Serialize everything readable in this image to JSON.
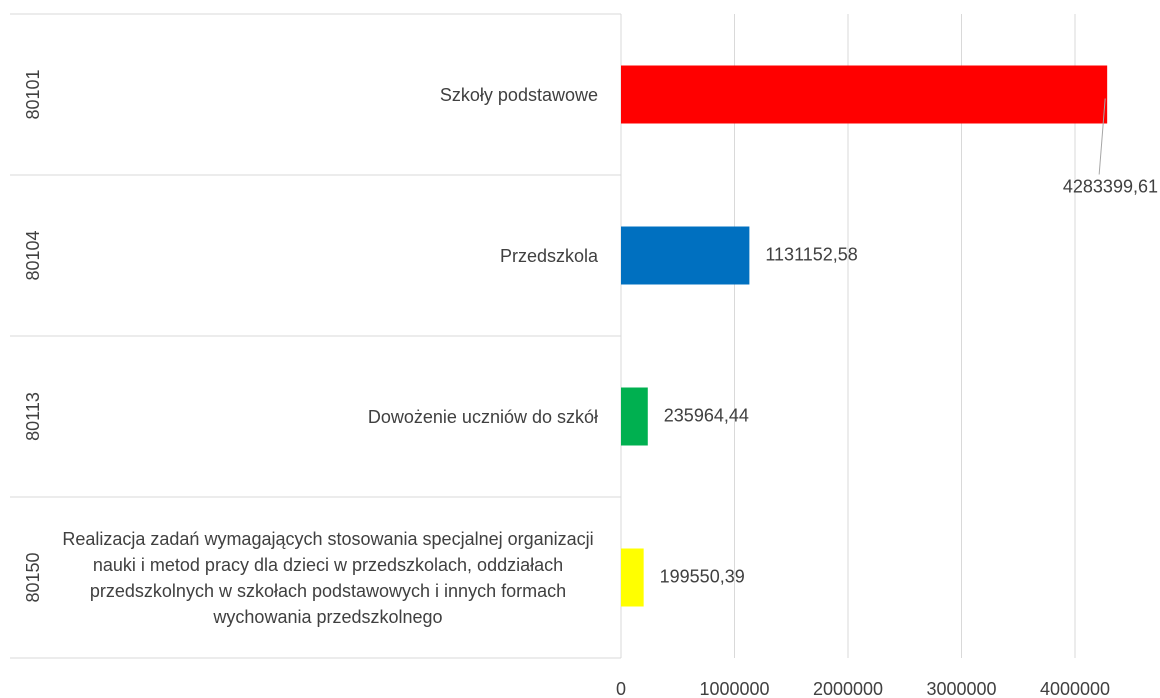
{
  "chart_data": {
    "type": "bar",
    "orientation": "horizontal",
    "group_categories": [
      "80101",
      "80104",
      "80113",
      "80150"
    ],
    "categories": [
      "Szkoły podstawowe",
      "Przedszkola",
      "Dowożenie uczniów do szkół",
      "Realizacja zadań wymagających stosowania specjalnej organizacji nauki i metod pracy dla dzieci w przedszkolach, oddziałach przedszkolnych w szkołach podstawowych i innych formach wychowania przedszkolnego"
    ],
    "values": [
      4283399.61,
      1131152.58,
      235964.44,
      199550.39
    ],
    "value_labels": [
      "4283399,61",
      "1131152,58",
      "235964,44",
      "199550,39"
    ],
    "colors": [
      "#ff0000",
      "#0070c0",
      "#00b050",
      "#ffff00"
    ],
    "xlim": [
      0,
      4500000
    ],
    "xticks": [
      0,
      1000000,
      2000000,
      3000000,
      4000000
    ],
    "grid": true
  }
}
